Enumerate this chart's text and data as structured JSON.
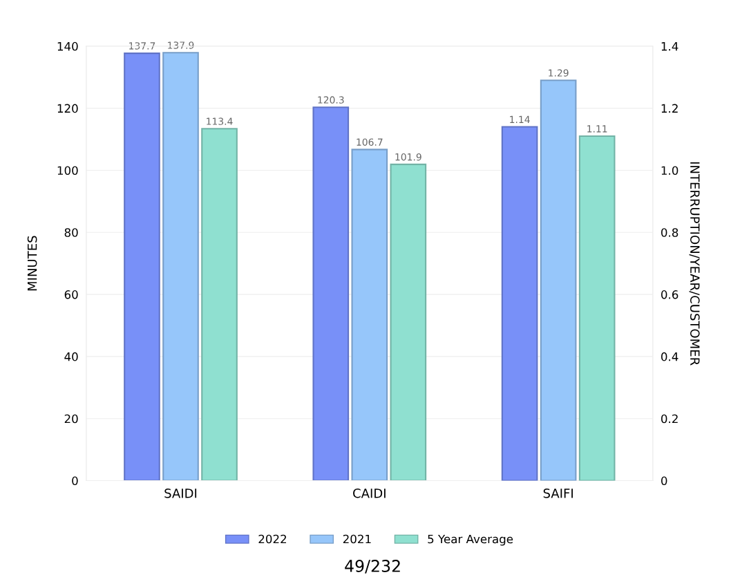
{
  "chart_data": {
    "type": "bar",
    "ylabel": "MINUTES",
    "y2label": "INTERRUPTION/YEAR/CUSTOMER",
    "categories": [
      "SAIDI",
      "CAIDI",
      "SAIFI"
    ],
    "series": [
      {
        "name": "2022",
        "color": "#7890f8",
        "values": [
          137.7,
          120.3,
          null
        ],
        "value_labels": [
          "137.7",
          "120.3",
          null
        ]
      },
      {
        "name": "2021",
        "color": "#96c6fa",
        "values": [
          137.9,
          106.7,
          null
        ],
        "value_labels": [
          "137.9",
          "106.7",
          null
        ]
      },
      {
        "name": "5 Year Average",
        "color": "#8fe0d0",
        "values": [
          113.4,
          101.9,
          null
        ],
        "value_labels": [
          "113.4",
          "101.9",
          null
        ]
      },
      {
        "color": "#7890f8",
        "axis": "y2",
        "values": [
          null,
          null,
          1.14
        ],
        "value_labels": [
          null,
          null,
          "1.14"
        ]
      },
      {
        "color": "#96c6fa",
        "axis": "y2",
        "values": [
          null,
          null,
          1.29
        ],
        "value_labels": [
          null,
          null,
          "1.29"
        ]
      },
      {
        "color": "#8fe0d0",
        "axis": "y2",
        "values": [
          null,
          null,
          1.11
        ],
        "value_labels": [
          null,
          null,
          "1.11"
        ]
      }
    ],
    "ylim": [
      0,
      140
    ],
    "yticks": [
      0,
      20,
      40,
      60,
      80,
      100,
      120,
      140
    ],
    "y2lim": [
      0,
      1.4
    ],
    "y2ticks": [
      {
        "value": 0,
        "label": "0"
      },
      {
        "value": 0.2,
        "label": "0.2"
      },
      {
        "value": 0.4,
        "label": "0.4"
      },
      {
        "value": 0.6,
        "label": "0.6"
      },
      {
        "value": 0.8,
        "label": "0.8"
      },
      {
        "value": 1.0,
        "label": "1.0"
      },
      {
        "value": 1.2,
        "label": "1.2"
      },
      {
        "value": 1.4,
        "label": "1.4"
      }
    ],
    "grid": "y",
    "legend": "bottom",
    "annotations": [
      "49/232"
    ]
  }
}
